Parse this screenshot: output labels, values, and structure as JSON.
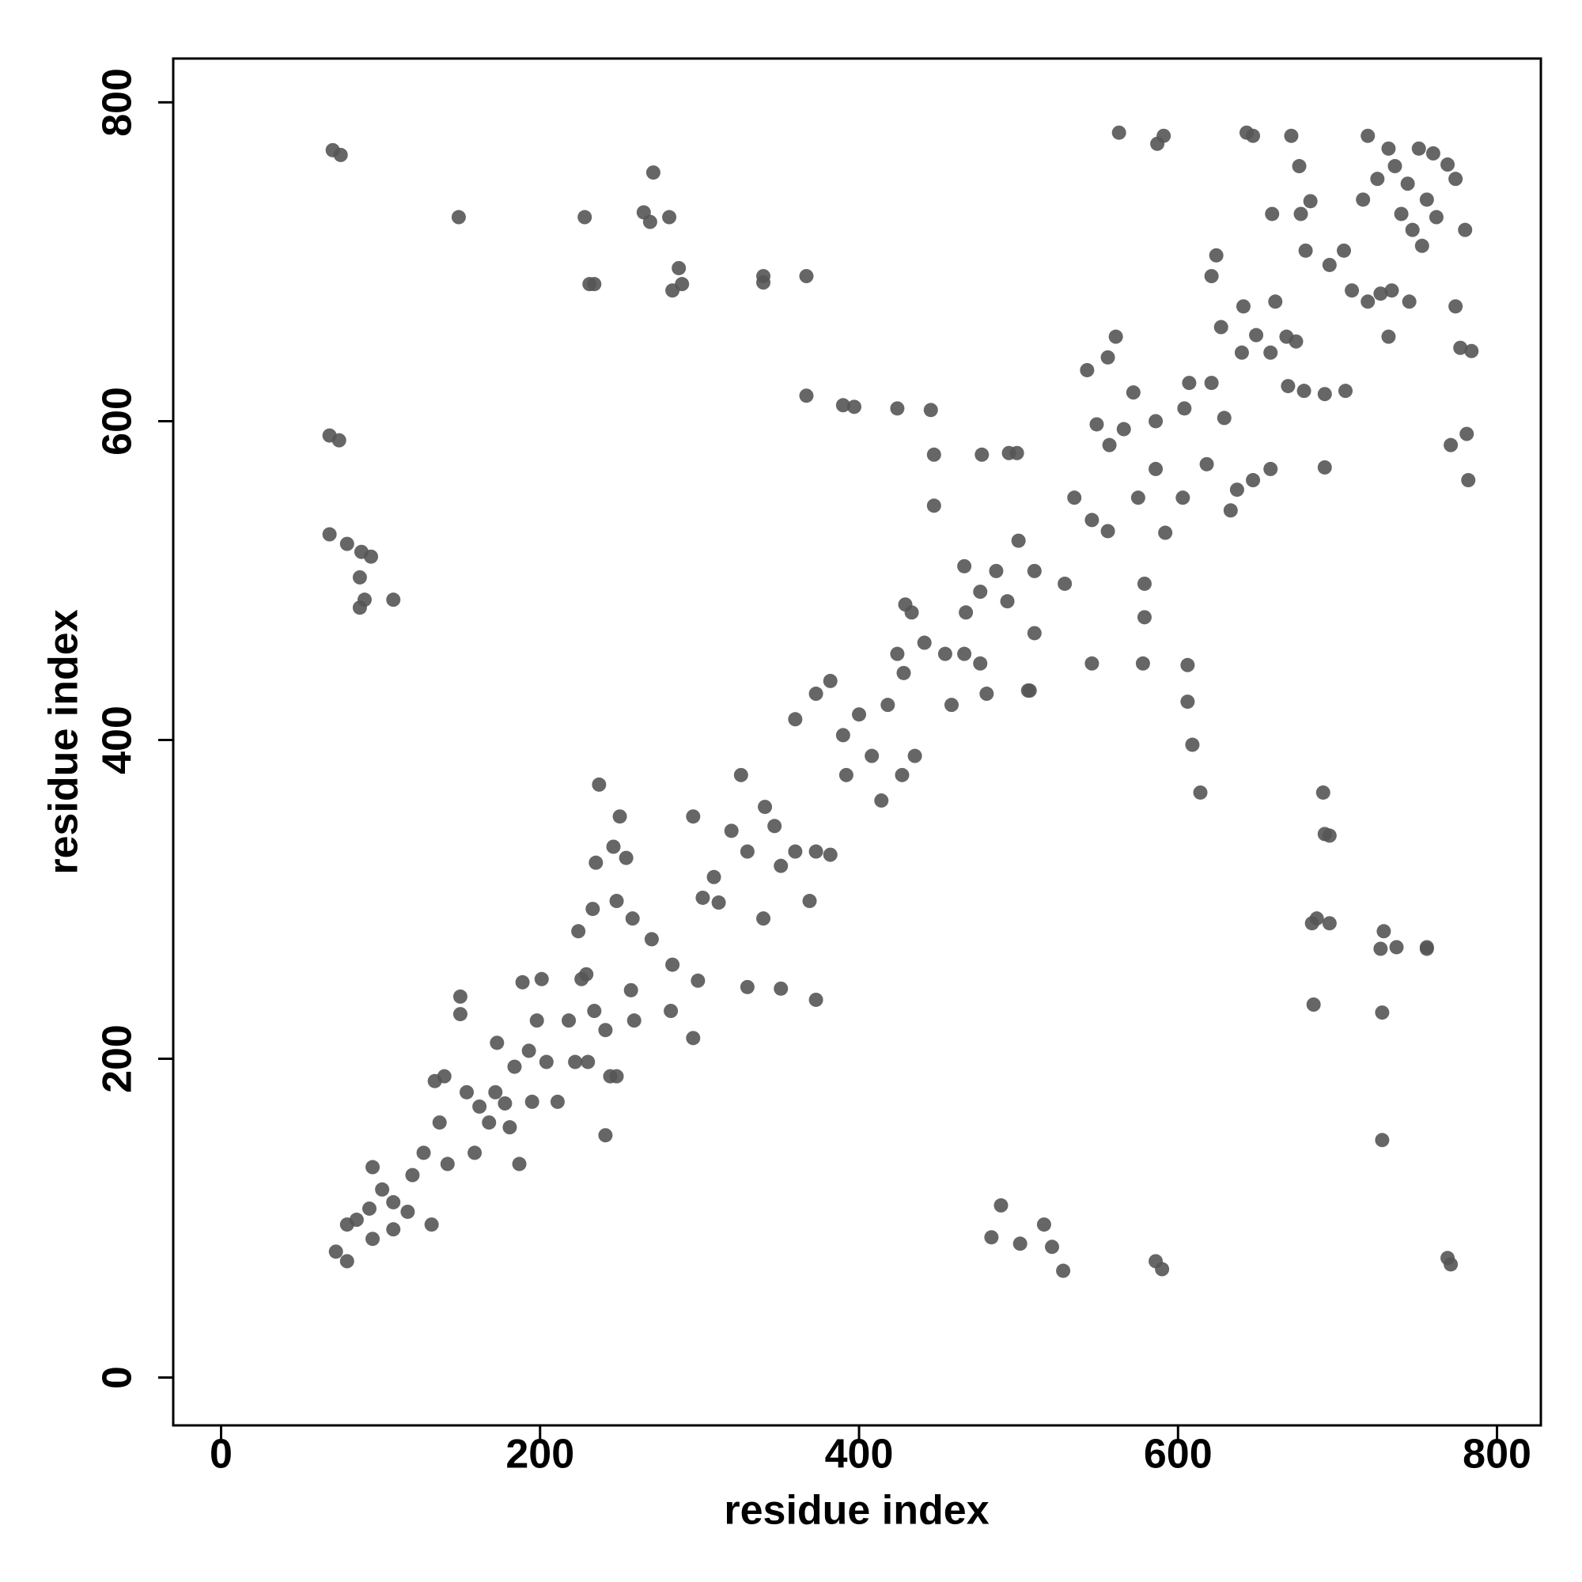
{
  "chart_data": {
    "type": "scatter",
    "x_label": "residue index",
    "y_label": "residue index",
    "xlim": [
      -30,
      827.5
    ],
    "ylim": [
      -30,
      827.5
    ],
    "xticks": [
      0,
      200,
      400,
      600,
      800
    ],
    "yticks": [
      0,
      200,
      400,
      600,
      800
    ],
    "color": "#555555",
    "x": [
      70,
      75,
      149,
      228,
      231,
      234,
      271,
      265,
      269,
      281,
      287,
      289,
      283,
      340,
      340,
      367,
      367,
      390,
      397,
      424,
      445,
      447,
      447,
      477,
      494,
      499,
      68,
      74,
      68,
      79,
      88,
      87,
      94,
      90,
      108,
      87,
      483,
      489,
      501,
      516,
      521,
      528,
      586,
      590,
      769,
      771,
      728,
      728,
      727,
      729,
      737,
      756,
      756,
      685,
      687,
      684,
      695,
      692,
      691,
      695,
      606,
      606,
      609,
      614,
      578,
      579,
      579,
      546,
      506,
      563,
      587,
      591,
      643,
      647,
      671,
      676,
      719,
      732,
      751,
      760,
      769,
      774,
      780,
      774,
      777,
      784,
      781,
      771,
      782,
      659,
      692,
      732,
      745,
      72,
      79,
      79,
      85,
      93,
      95,
      101,
      108,
      108,
      117,
      95,
      120,
      132,
      127,
      134,
      140,
      137,
      142,
      150,
      150,
      154,
      159,
      162,
      168,
      172,
      178,
      173,
      181,
      184,
      187,
      189,
      193,
      195,
      198,
      204,
      211,
      201,
      218,
      222,
      230,
      226,
      224,
      233,
      229,
      234,
      241,
      244,
      248,
      241,
      237,
      235,
      246,
      250,
      254,
      257,
      259,
      248,
      258,
      270,
      283,
      299,
      282,
      296,
      296,
      302,
      309,
      312,
      320,
      326,
      330,
      341,
      347,
      351,
      360,
      369,
      373,
      382,
      340,
      330,
      351,
      373,
      360,
      373,
      382,
      390,
      400,
      408,
      392,
      414,
      418,
      424,
      428,
      427,
      435,
      429,
      441,
      454,
      458,
      467,
      466,
      476,
      480,
      466,
      476,
      486,
      493,
      500,
      510,
      529,
      507,
      510,
      433,
      535,
      546,
      556,
      543,
      556,
      561,
      549,
      557,
      566,
      572,
      575,
      586,
      586,
      592,
      603,
      604,
      607,
      618,
      621,
      629,
      633,
      621,
      624,
      627,
      640,
      641,
      649,
      661,
      658,
      669,
      637,
      647,
      658,
      668,
      674,
      679,
      692,
      705,
      680,
      677,
      683,
      695,
      704,
      709,
      719,
      727,
      734,
      716,
      725,
      736,
      740,
      747,
      753,
      744,
      756,
      762
    ],
    "values": [
      770,
      767,
      728,
      728,
      686,
      686,
      756,
      731,
      725,
      728,
      696,
      686,
      682,
      691,
      687,
      691,
      616,
      610,
      609,
      608,
      607,
      579,
      547,
      579,
      580,
      580,
      591,
      588,
      529,
      523,
      518,
      502,
      515,
      488,
      488,
      483,
      88,
      108,
      84,
      96,
      82,
      67,
      73,
      68,
      75,
      71,
      149,
      229,
      269,
      280,
      270,
      270,
      269,
      234,
      288,
      285,
      285,
      341,
      367,
      340,
      447,
      424,
      397,
      367,
      448,
      477,
      498,
      448,
      431,
      781,
      774,
      779,
      781,
      779,
      779,
      760,
      779,
      771,
      771,
      768,
      761,
      752,
      720,
      672,
      646,
      644,
      592,
      585,
      563,
      730,
      571,
      653,
      675,
      79,
      73,
      96,
      99,
      106,
      87,
      118,
      110,
      93,
      104,
      132,
      127,
      96,
      141,
      186,
      189,
      160,
      134,
      239,
      228,
      179,
      141,
      170,
      160,
      179,
      172,
      210,
      157,
      195,
      134,
      248,
      205,
      173,
      224,
      198,
      173,
      250,
      224,
      198,
      198,
      250,
      280,
      294,
      253,
      230,
      218,
      189,
      189,
      152,
      372,
      323,
      333,
      352,
      326,
      243,
      224,
      299,
      288,
      275,
      259,
      249,
      230,
      213,
      352,
      301,
      314,
      298,
      343,
      378,
      330,
      358,
      346,
      321,
      330,
      299,
      330,
      328,
      288,
      245,
      244,
      237,
      413,
      429,
      437,
      403,
      416,
      390,
      378,
      362,
      422,
      454,
      442,
      378,
      390,
      485,
      461,
      454,
      422,
      480,
      454,
      448,
      429,
      509,
      493,
      506,
      487,
      525,
      506,
      498,
      431,
      467,
      480,
      552,
      538,
      531,
      632,
      640,
      653,
      598,
      585,
      595,
      618,
      552,
      570,
      600,
      530,
      552,
      608,
      624,
      573,
      624,
      602,
      544,
      691,
      704,
      659,
      643,
      672,
      654,
      675,
      643,
      622,
      557,
      563,
      570,
      653,
      650,
      619,
      617,
      619,
      707,
      730,
      738,
      698,
      707,
      682,
      675,
      680,
      682,
      739,
      752,
      760,
      730,
      720,
      710,
      749,
      739,
      728
    ]
  }
}
